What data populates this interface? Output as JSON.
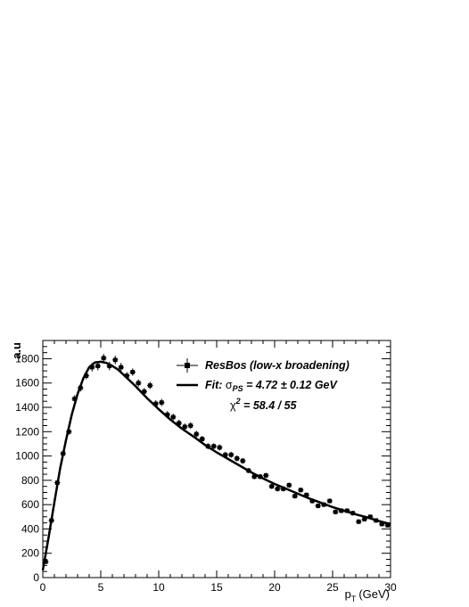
{
  "chart_data": {
    "type": "scatter",
    "title": "",
    "xlabel_main": "p",
    "xlabel_sub": "T",
    "xlabel_unit": "(GeV)",
    "ylabel": "a.u",
    "xlim": [
      0,
      30
    ],
    "ylim": [
      0,
      1950
    ],
    "x_ticks": [
      "0",
      "5",
      "10",
      "15",
      "20",
      "25",
      "30"
    ],
    "y_ticks": [
      "0",
      "200",
      "400",
      "600",
      "800",
      "1000",
      "1200",
      "1400",
      "1600",
      "1800"
    ],
    "grid": false,
    "legend_position": "top-right",
    "legend": {
      "data_label": "ResBos (low-x broadening)",
      "fit_prefix": "Fit: ",
      "sigma": "σ",
      "sigma_sub": "PS",
      "fit_value": " = 4.72 ± 0.12 GeV",
      "chi": "χ",
      "chi_sup": "2",
      "chi_value": " = 58.4 / 55"
    },
    "series": [
      {
        "name": "ResBos (low-x broadening)",
        "x": [
          0.25,
          0.75,
          1.25,
          1.75,
          2.25,
          2.75,
          3.25,
          3.75,
          4.25,
          4.75,
          5.25,
          5.75,
          6.25,
          6.75,
          7.25,
          7.75,
          8.25,
          8.75,
          9.25,
          9.75,
          10.25,
          10.75,
          11.25,
          11.75,
          12.25,
          12.75,
          13.25,
          13.75,
          14.25,
          14.75,
          15.25,
          15.75,
          16.25,
          16.75,
          17.25,
          17.75,
          18.25,
          18.75,
          19.25,
          19.75,
          20.25,
          20.75,
          21.25,
          21.75,
          22.25,
          22.75,
          23.25,
          23.75,
          24.25,
          24.75,
          25.25,
          25.75,
          26.25,
          26.75,
          27.25,
          27.75,
          28.25,
          28.75,
          29.25,
          29.75
        ],
        "y": [
          130,
          470,
          780,
          1020,
          1200,
          1470,
          1560,
          1660,
          1730,
          1740,
          1805,
          1740,
          1790,
          1730,
          1660,
          1690,
          1600,
          1530,
          1580,
          1430,
          1440,
          1340,
          1320,
          1270,
          1240,
          1250,
          1180,
          1140,
          1080,
          1080,
          1070,
          1010,
          1010,
          980,
          960,
          880,
          830,
          830,
          840,
          750,
          730,
          730,
          760,
          670,
          720,
          680,
          630,
          590,
          600,
          630,
          540,
          550,
          550,
          530,
          460,
          480,
          500,
          470,
          440,
          430
        ],
        "y_err": [
          15,
          20,
          25,
          25,
          25,
          30,
          30,
          30,
          35,
          35,
          35,
          35,
          35,
          35,
          30,
          30,
          30,
          30,
          30,
          30,
          30,
          30,
          28,
          28,
          28,
          28,
          28,
          25,
          25,
          25,
          25,
          25,
          25,
          25,
          25,
          22,
          22,
          22,
          22,
          22,
          22,
          22,
          22,
          20,
          20,
          20,
          20,
          20,
          20,
          20,
          20,
          20,
          20,
          20,
          20,
          18,
          18,
          18,
          18,
          18
        ]
      },
      {
        "name": "Fit",
        "x": [
          0,
          0.5,
          1,
          1.5,
          2,
          2.5,
          3,
          3.5,
          4,
          4.5,
          5,
          5.5,
          6,
          6.5,
          7,
          7.5,
          8,
          8.5,
          9,
          9.5,
          10,
          11,
          12,
          13,
          14,
          15,
          16,
          17,
          18,
          19,
          20,
          21,
          22,
          23,
          24,
          25,
          26,
          27,
          28,
          29,
          30
        ],
        "y": [
          60,
          330,
          620,
          900,
          1130,
          1340,
          1510,
          1640,
          1730,
          1770,
          1775,
          1765,
          1740,
          1710,
          1665,
          1620,
          1575,
          1525,
          1475,
          1430,
          1385,
          1300,
          1225,
          1160,
          1090,
          1030,
          975,
          920,
          865,
          815,
          770,
          730,
          690,
          650,
          615,
          580,
          550,
          520,
          495,
          465,
          440
        ]
      }
    ]
  }
}
